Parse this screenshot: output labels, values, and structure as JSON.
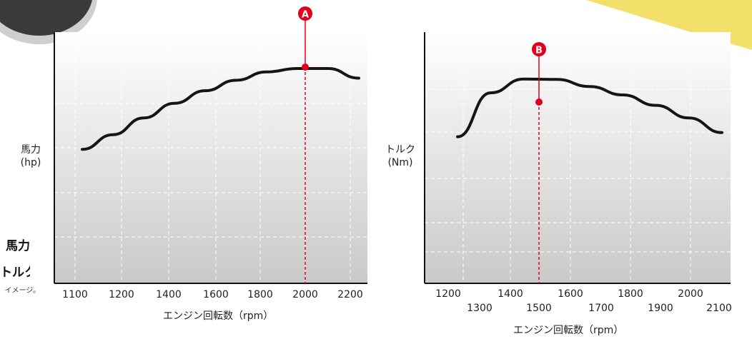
{
  "texts": {
    "left_title_1": "馬力",
    "left_title_2": "トルク",
    "left_note": "イメージ。"
  },
  "chart_data": [
    {
      "type": "line",
      "ylabel": "馬力\n(hp)",
      "xlabel": "エンジン回転数（rpm）",
      "x_ticks": [
        "1100",
        "1200",
        "1400",
        "1600",
        "1800",
        "2000",
        "2200"
      ],
      "series": [
        {
          "values": [
            3.2,
            3.55,
            3.95,
            4.3,
            4.6,
            4.85,
            5.05,
            5.13,
            5.13,
            4.9
          ]
        }
      ],
      "marker": {
        "label": "A",
        "x_tick_label": "2000",
        "color": "#e0001b"
      },
      "grid": true
    },
    {
      "type": "line",
      "ylabel": "トルク\n(Nm)",
      "xlabel": "エンジン回転数（rpm）",
      "x_ticks": [
        "1200",
        "1300",
        "1400",
        "1500",
        "1600",
        "1700",
        "1800",
        "1900",
        "2000",
        "2100"
      ],
      "series": [
        {
          "values": [
            3.5,
            4.55,
            4.88,
            4.87,
            4.7,
            4.5,
            4.25,
            3.95,
            3.6
          ]
        }
      ],
      "marker": {
        "label": "B",
        "x_tick_label": "1500",
        "color": "#e0001b"
      },
      "grid": true
    }
  ]
}
